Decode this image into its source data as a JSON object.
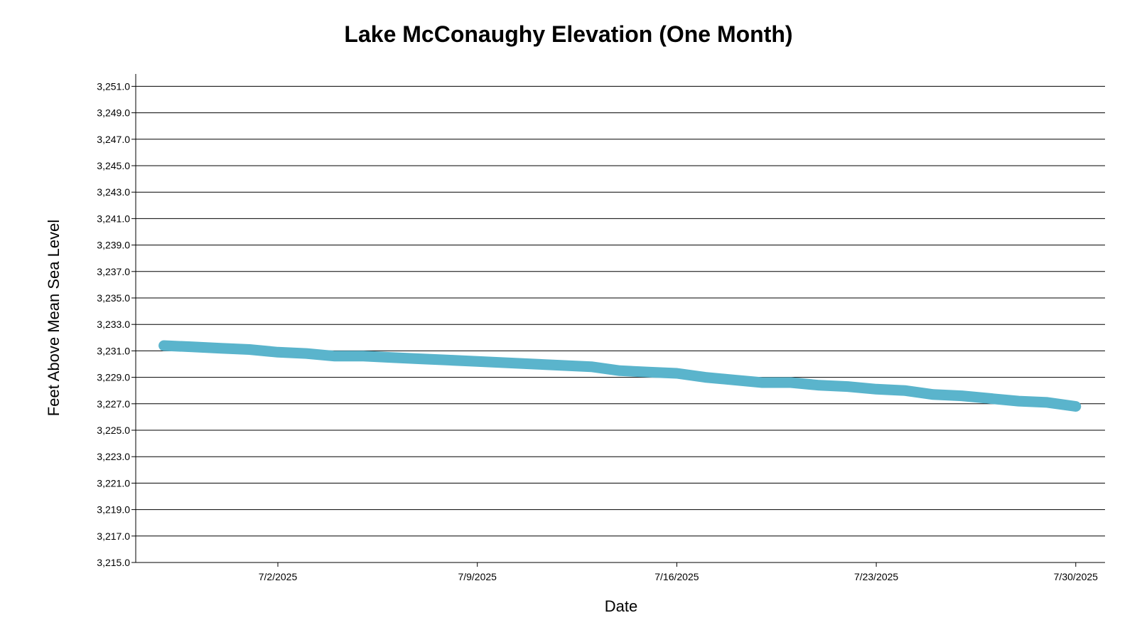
{
  "chart_data": {
    "type": "line",
    "title": "Lake McConaughy Elevation (One Month)",
    "xlabel": "Date",
    "ylabel": "Feet Above Mean Sea Level",
    "x_tick_labels": [
      "7/2/2025",
      "7/9/2025",
      "7/16/2025",
      "7/23/2025",
      "7/30/2025"
    ],
    "y_tick_labels": [
      "3,215.0",
      "3,217.0",
      "3,219.0",
      "3,221.0",
      "3,223.0",
      "3,225.0",
      "3,227.0",
      "3,229.0",
      "3,231.0",
      "3,233.0",
      "3,235.0",
      "3,237.0",
      "3,239.0",
      "3,241.0",
      "3,243.0",
      "3,245.0",
      "3,247.0",
      "3,249.0",
      "3,251.0"
    ],
    "ylim": [
      3215,
      3252
    ],
    "xlim": [
      "6/27/2025",
      "7/31/2025"
    ],
    "grid": true,
    "series": [
      {
        "color": "#5ab4cc",
        "x": [
          "6/28/2025",
          "6/29/2025",
          "6/30/2025",
          "7/1/2025",
          "7/2/2025",
          "7/3/2025",
          "7/4/2025",
          "7/5/2025",
          "7/6/2025",
          "7/7/2025",
          "7/8/2025",
          "7/9/2025",
          "7/10/2025",
          "7/11/2025",
          "7/12/2025",
          "7/13/2025",
          "7/14/2025",
          "7/15/2025",
          "7/16/2025",
          "7/17/2025",
          "7/18/2025",
          "7/19/2025",
          "7/20/2025",
          "7/21/2025",
          "7/22/2025",
          "7/23/2025",
          "7/24/2025",
          "7/25/2025",
          "7/26/2025",
          "7/27/2025",
          "7/28/2025",
          "7/29/2025",
          "7/30/2025"
        ],
        "values": [
          3231.4,
          3231.3,
          3231.2,
          3231.1,
          3230.9,
          3230.8,
          3230.6,
          3230.6,
          3230.5,
          3230.4,
          3230.3,
          3230.2,
          3230.1,
          3230.0,
          3229.9,
          3229.8,
          3229.5,
          3229.4,
          3229.3,
          3229.0,
          3228.8,
          3228.6,
          3228.6,
          3228.4,
          3228.3,
          3228.1,
          3228.0,
          3227.7,
          3227.6,
          3227.4,
          3227.2,
          3227.1,
          3226.8
        ]
      }
    ]
  }
}
